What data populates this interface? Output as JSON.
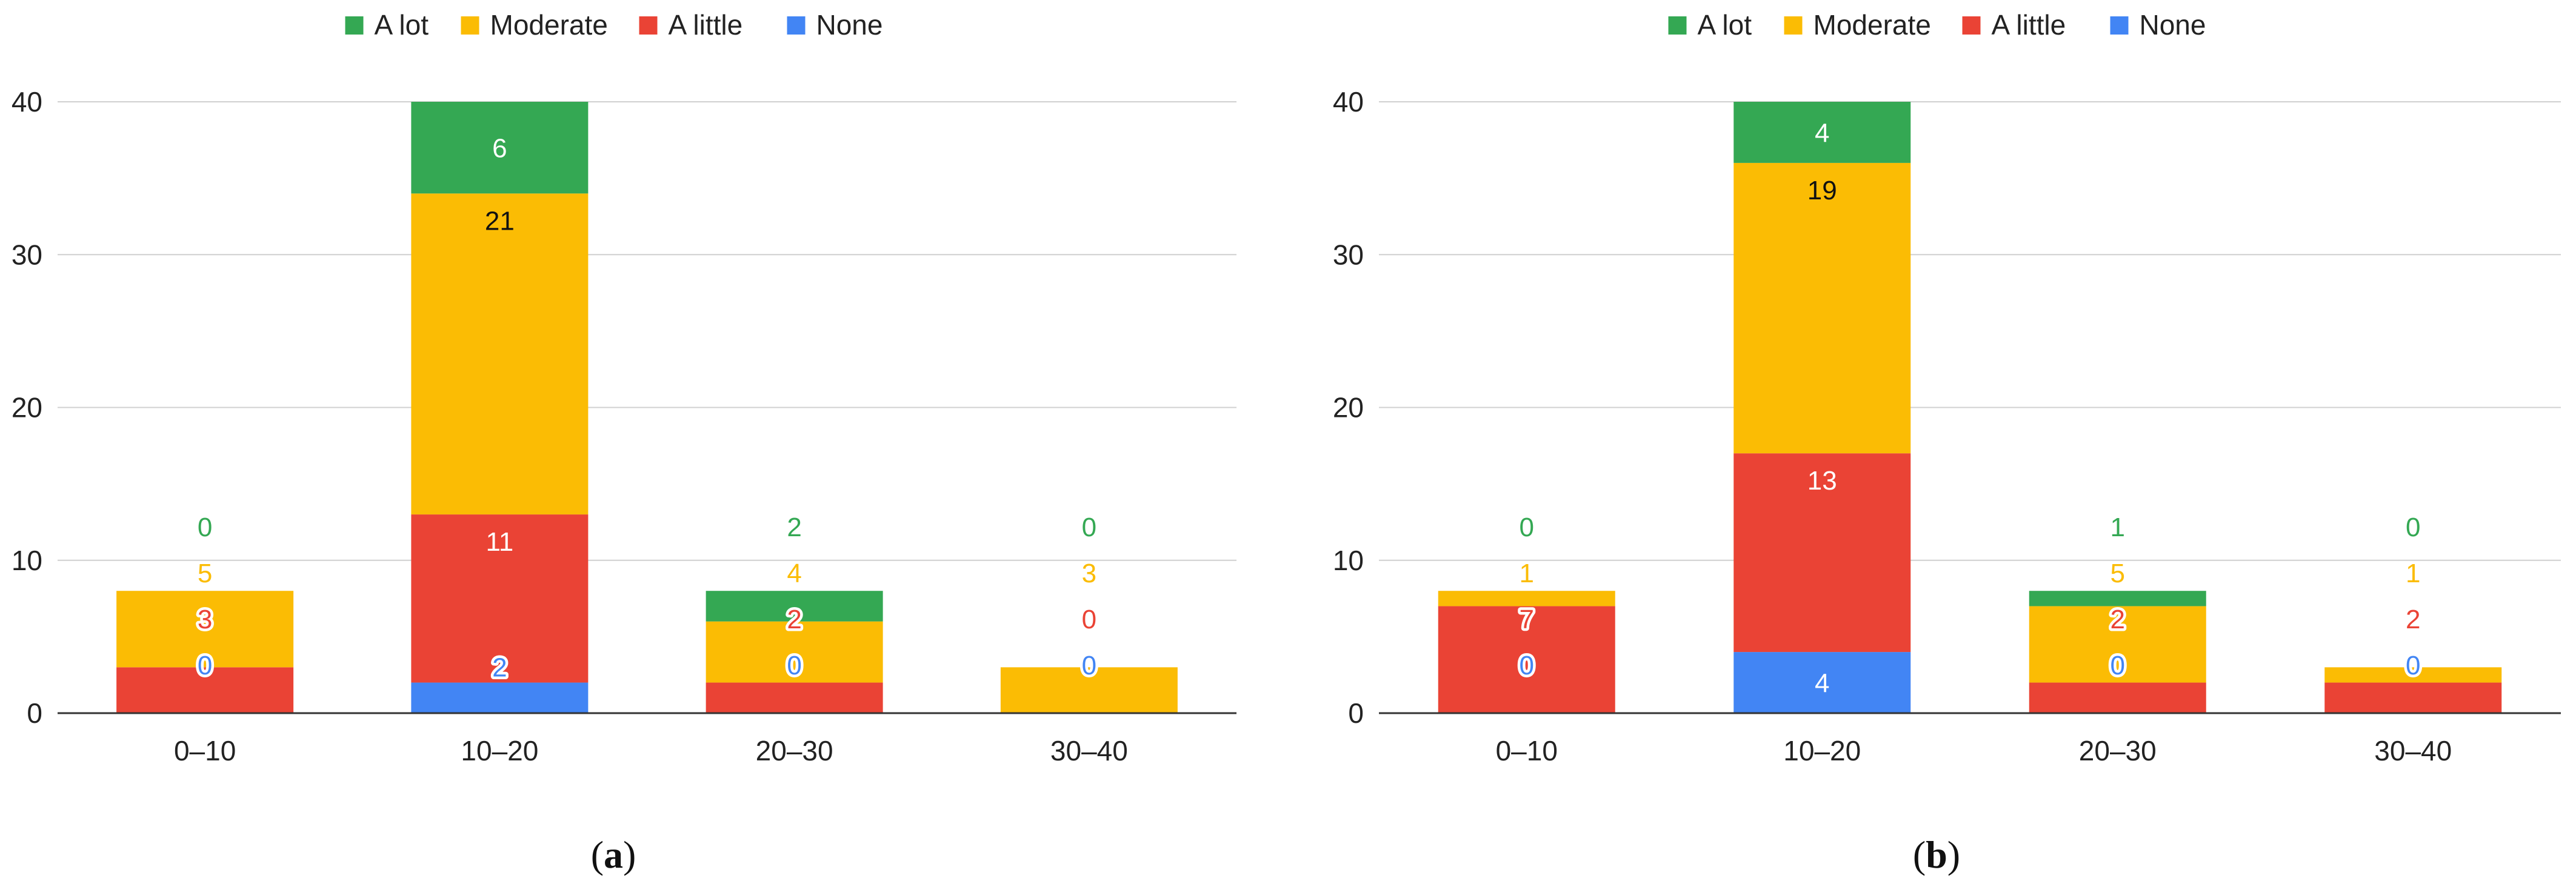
{
  "colors": {
    "A lot": "#34a853",
    "Moderate": "#fbbc04",
    "A little": "#ea4335",
    "None": "#4285f4"
  },
  "chart_data": [
    {
      "panel": "(a)",
      "panel_letter": "a",
      "type": "bar",
      "stacked": true,
      "categories": [
        "0–10",
        "10–20",
        "20–30",
        "30–40"
      ],
      "series": [
        {
          "name": "None",
          "values": [
            0,
            2,
            0,
            0
          ]
        },
        {
          "name": "A little",
          "values": [
            3,
            11,
            2,
            0
          ]
        },
        {
          "name": "Moderate",
          "values": [
            5,
            21,
            4,
            3
          ]
        },
        {
          "name": "A lot",
          "values": [
            0,
            6,
            2,
            0
          ]
        }
      ],
      "legend_order": [
        "A lot",
        "Moderate",
        "A little",
        "None"
      ],
      "legend_position": "top",
      "ylim": [
        0,
        40
      ],
      "yticks": [
        0,
        10,
        20,
        30,
        40
      ],
      "grid": true
    },
    {
      "panel": "(b)",
      "panel_letter": "b",
      "type": "bar",
      "stacked": true,
      "categories": [
        "0–10",
        "10–20",
        "20–30",
        "30–40"
      ],
      "series": [
        {
          "name": "None",
          "values": [
            0,
            4,
            0,
            0
          ]
        },
        {
          "name": "A little",
          "values": [
            7,
            13,
            2,
            2
          ]
        },
        {
          "name": "Moderate",
          "values": [
            1,
            19,
            5,
            1
          ]
        },
        {
          "name": "A lot",
          "values": [
            0,
            4,
            1,
            0
          ]
        }
      ],
      "legend_order": [
        "A lot",
        "Moderate",
        "A little",
        "None"
      ],
      "legend_position": "top",
      "ylim": [
        0,
        40
      ],
      "yticks": [
        0,
        10,
        20,
        30,
        40
      ],
      "grid": true
    }
  ]
}
